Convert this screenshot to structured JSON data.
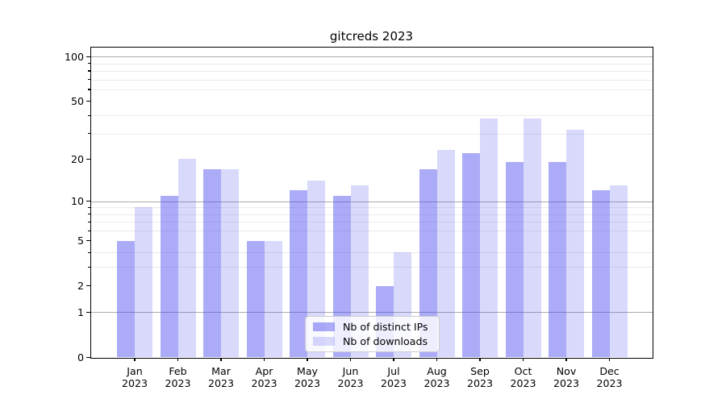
{
  "title": "gitcreds 2023",
  "legend": {
    "items": [
      {
        "label": "Nb of distinct IPs",
        "color": "rgba(80,80,240,0.48)"
      },
      {
        "label": "Nb of downloads",
        "color": "rgba(80,80,240,0.22)"
      }
    ]
  },
  "chart_data": {
    "type": "bar",
    "title": "gitcreds 2023",
    "categories": [
      "Jan 2023",
      "Feb 2023",
      "Mar 2023",
      "Apr 2023",
      "May 2023",
      "Jun 2023",
      "Jul 2023",
      "Aug 2023",
      "Sep 2023",
      "Oct 2023",
      "Nov 2023",
      "Dec 2023"
    ],
    "series": [
      {
        "name": "Nb of distinct IPs",
        "color": "rgba(80,80,240,0.48)",
        "values": [
          5,
          11,
          17,
          5,
          12,
          11,
          2,
          17,
          22,
          19,
          19,
          12
        ]
      },
      {
        "name": "Nb of downloads",
        "color": "rgba(80,80,240,0.22)",
        "values": [
          9,
          20,
          17,
          5,
          14,
          13,
          4,
          23,
          38,
          38,
          32,
          13
        ]
      }
    ],
    "yscale": "log1p",
    "ylim": [
      0,
      115
    ],
    "y_ticks": [
      100,
      50,
      20,
      10,
      5,
      2,
      1,
      0
    ],
    "y_minor_gridlines": [
      3,
      4,
      6,
      7,
      8,
      9,
      30,
      40,
      60,
      70,
      80,
      90
    ],
    "y_major_gridlines": [
      1,
      10,
      100
    ],
    "grid": true,
    "legend_position": "lower center",
    "xlabel": "",
    "ylabel": ""
  },
  "colors": {
    "background": "#ffffff",
    "bar_dark_solid": "#a8a8f8",
    "bar_light_solid": "#d9d9fa",
    "grid_minor": "#ebebeb",
    "grid_major": "#ababab",
    "spine": "#000000",
    "text": "#000000",
    "legend_border": "#cccccc"
  }
}
